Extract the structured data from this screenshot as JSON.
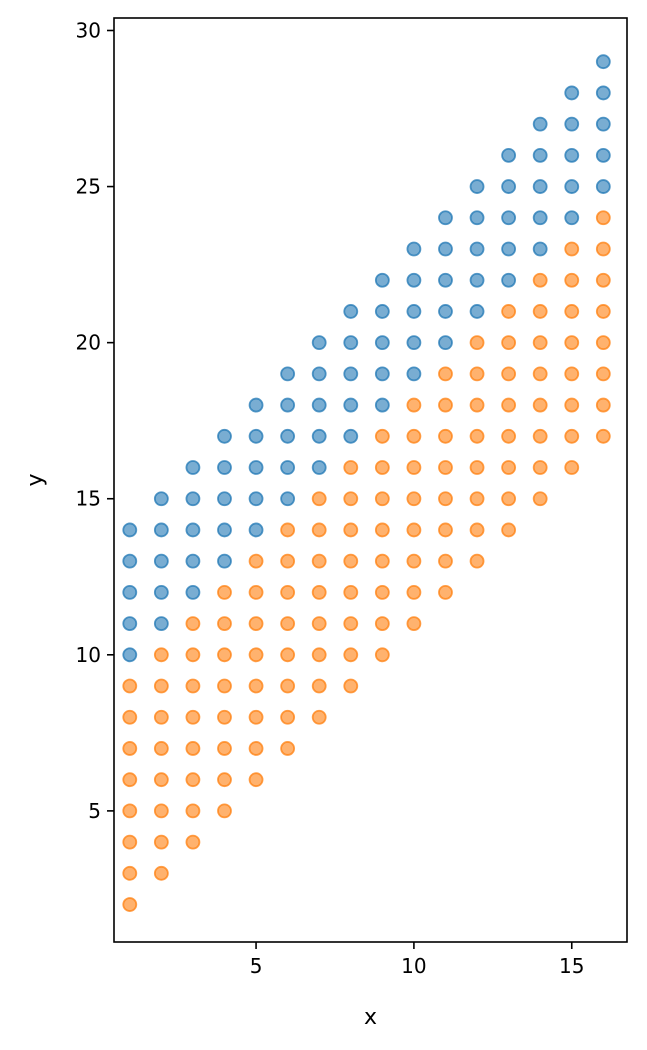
{
  "chart_data": {
    "type": "scatter",
    "title": "",
    "xlabel": "x",
    "ylabel": "y",
    "xlim": [
      0.5,
      16.75
    ],
    "ylim": [
      0.8,
      30.4
    ],
    "grid": false,
    "x_ticks": [
      5,
      10,
      15
    ],
    "y_ticks": [
      5,
      10,
      15,
      20,
      25,
      30
    ],
    "x_tick_labels": [
      "5",
      "10",
      "15"
    ],
    "y_tick_labels": [
      "5",
      "10",
      "15",
      "20",
      "25",
      "30"
    ],
    "series": [
      {
        "color": "#1f77b4",
        "points": [
          [
            1,
            10
          ],
          [
            1,
            11
          ],
          [
            1,
            12
          ],
          [
            1,
            13
          ],
          [
            1,
            14
          ],
          [
            2,
            11
          ],
          [
            2,
            12
          ],
          [
            2,
            13
          ],
          [
            2,
            14
          ],
          [
            2,
            15
          ],
          [
            3,
            12
          ],
          [
            3,
            13
          ],
          [
            3,
            14
          ],
          [
            3,
            15
          ],
          [
            3,
            16
          ],
          [
            4,
            13
          ],
          [
            4,
            14
          ],
          [
            4,
            15
          ],
          [
            4,
            16
          ],
          [
            4,
            17
          ],
          [
            5,
            14
          ],
          [
            5,
            15
          ],
          [
            5,
            16
          ],
          [
            5,
            17
          ],
          [
            5,
            18
          ],
          [
            6,
            15
          ],
          [
            6,
            16
          ],
          [
            6,
            17
          ],
          [
            6,
            18
          ],
          [
            6,
            19
          ],
          [
            7,
            16
          ],
          [
            7,
            17
          ],
          [
            7,
            18
          ],
          [
            7,
            19
          ],
          [
            7,
            20
          ],
          [
            8,
            17
          ],
          [
            8,
            18
          ],
          [
            8,
            19
          ],
          [
            8,
            20
          ],
          [
            8,
            21
          ],
          [
            9,
            18
          ],
          [
            9,
            19
          ],
          [
            9,
            20
          ],
          [
            9,
            21
          ],
          [
            9,
            22
          ],
          [
            10,
            19
          ],
          [
            10,
            20
          ],
          [
            10,
            21
          ],
          [
            10,
            22
          ],
          [
            10,
            23
          ],
          [
            11,
            20
          ],
          [
            11,
            21
          ],
          [
            11,
            22
          ],
          [
            11,
            23
          ],
          [
            11,
            24
          ],
          [
            12,
            21
          ],
          [
            12,
            22
          ],
          [
            12,
            23
          ],
          [
            12,
            24
          ],
          [
            12,
            25
          ],
          [
            13,
            22
          ],
          [
            13,
            23
          ],
          [
            13,
            24
          ],
          [
            13,
            25
          ],
          [
            13,
            26
          ],
          [
            14,
            23
          ],
          [
            14,
            24
          ],
          [
            14,
            25
          ],
          [
            14,
            26
          ],
          [
            14,
            27
          ],
          [
            15,
            24
          ],
          [
            15,
            25
          ],
          [
            15,
            26
          ],
          [
            15,
            27
          ],
          [
            15,
            28
          ],
          [
            16,
            25
          ],
          [
            16,
            26
          ],
          [
            16,
            27
          ],
          [
            16,
            28
          ],
          [
            16,
            29
          ]
        ]
      },
      {
        "color": "#ff7f0e",
        "points": [
          [
            1,
            2
          ],
          [
            1,
            3
          ],
          [
            1,
            4
          ],
          [
            1,
            5
          ],
          [
            1,
            6
          ],
          [
            1,
            7
          ],
          [
            1,
            8
          ],
          [
            1,
            9
          ],
          [
            2,
            3
          ],
          [
            2,
            4
          ],
          [
            2,
            5
          ],
          [
            2,
            6
          ],
          [
            2,
            7
          ],
          [
            2,
            8
          ],
          [
            2,
            9
          ],
          [
            2,
            10
          ],
          [
            3,
            4
          ],
          [
            3,
            5
          ],
          [
            3,
            6
          ],
          [
            3,
            7
          ],
          [
            3,
            8
          ],
          [
            3,
            9
          ],
          [
            3,
            10
          ],
          [
            3,
            11
          ],
          [
            4,
            5
          ],
          [
            4,
            6
          ],
          [
            4,
            7
          ],
          [
            4,
            8
          ],
          [
            4,
            9
          ],
          [
            4,
            10
          ],
          [
            4,
            11
          ],
          [
            4,
            12
          ],
          [
            5,
            6
          ],
          [
            5,
            7
          ],
          [
            5,
            8
          ],
          [
            5,
            9
          ],
          [
            5,
            10
          ],
          [
            5,
            11
          ],
          [
            5,
            12
          ],
          [
            5,
            13
          ],
          [
            6,
            7
          ],
          [
            6,
            8
          ],
          [
            6,
            9
          ],
          [
            6,
            10
          ],
          [
            6,
            11
          ],
          [
            6,
            12
          ],
          [
            6,
            13
          ],
          [
            6,
            14
          ],
          [
            7,
            8
          ],
          [
            7,
            9
          ],
          [
            7,
            10
          ],
          [
            7,
            11
          ],
          [
            7,
            12
          ],
          [
            7,
            13
          ],
          [
            7,
            14
          ],
          [
            7,
            15
          ],
          [
            8,
            9
          ],
          [
            8,
            10
          ],
          [
            8,
            11
          ],
          [
            8,
            12
          ],
          [
            8,
            13
          ],
          [
            8,
            14
          ],
          [
            8,
            15
          ],
          [
            8,
            16
          ],
          [
            9,
            10
          ],
          [
            9,
            11
          ],
          [
            9,
            12
          ],
          [
            9,
            13
          ],
          [
            9,
            14
          ],
          [
            9,
            15
          ],
          [
            9,
            16
          ],
          [
            9,
            17
          ],
          [
            10,
            11
          ],
          [
            10,
            12
          ],
          [
            10,
            13
          ],
          [
            10,
            14
          ],
          [
            10,
            15
          ],
          [
            10,
            16
          ],
          [
            10,
            17
          ],
          [
            10,
            18
          ],
          [
            11,
            12
          ],
          [
            11,
            13
          ],
          [
            11,
            14
          ],
          [
            11,
            15
          ],
          [
            11,
            16
          ],
          [
            11,
            17
          ],
          [
            11,
            18
          ],
          [
            11,
            19
          ],
          [
            12,
            13
          ],
          [
            12,
            14
          ],
          [
            12,
            15
          ],
          [
            12,
            16
          ],
          [
            12,
            17
          ],
          [
            12,
            18
          ],
          [
            12,
            19
          ],
          [
            12,
            20
          ],
          [
            13,
            14
          ],
          [
            13,
            15
          ],
          [
            13,
            16
          ],
          [
            13,
            17
          ],
          [
            13,
            18
          ],
          [
            13,
            19
          ],
          [
            13,
            20
          ],
          [
            13,
            21
          ],
          [
            14,
            15
          ],
          [
            14,
            16
          ],
          [
            14,
            17
          ],
          [
            14,
            18
          ],
          [
            14,
            19
          ],
          [
            14,
            20
          ],
          [
            14,
            21
          ],
          [
            14,
            22
          ],
          [
            15,
            16
          ],
          [
            15,
            17
          ],
          [
            15,
            18
          ],
          [
            15,
            19
          ],
          [
            15,
            20
          ],
          [
            15,
            21
          ],
          [
            15,
            22
          ],
          [
            15,
            23
          ],
          [
            16,
            17
          ],
          [
            16,
            18
          ],
          [
            16,
            19
          ],
          [
            16,
            20
          ],
          [
            16,
            21
          ],
          [
            16,
            22
          ],
          [
            16,
            23
          ],
          [
            16,
            24
          ]
        ]
      }
    ]
  }
}
